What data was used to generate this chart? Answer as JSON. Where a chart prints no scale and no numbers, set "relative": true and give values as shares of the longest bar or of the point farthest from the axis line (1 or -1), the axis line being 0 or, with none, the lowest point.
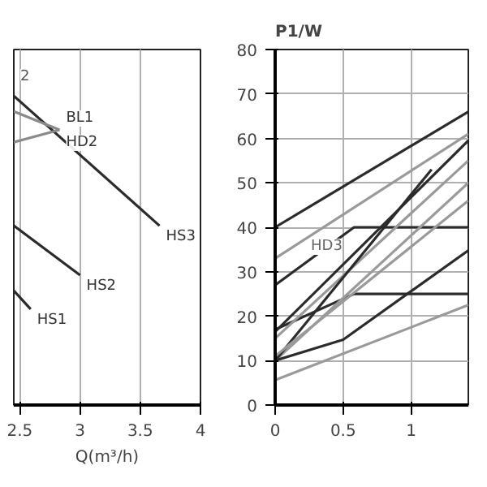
{
  "chart_data": [
    {
      "type": "line",
      "xlabel": "Q(m³/h)",
      "relative": true,
      "xlim": [
        2.45,
        4
      ],
      "xticks": [
        2.5,
        3,
        3.5,
        4
      ],
      "grid": "x",
      "tick_labels": "x",
      "annotations": [
        "2"
      ],
      "series": [
        {
          "name": "HS3",
          "color": "#2b2b2b",
          "x": [
            2.45,
            3.66
          ],
          "values": [
            1,
            0.58
          ]
        },
        {
          "name": "HS2",
          "color": "#2b2b2b",
          "x": [
            2.45,
            3.0
          ],
          "values": [
            0.58,
            0.42
          ]
        },
        {
          "name": "HS1",
          "color": "#2b2b2b",
          "x": [
            2.45,
            2.59
          ],
          "values": [
            0.37,
            0.31
          ]
        },
        {
          "name": "BL1",
          "color": "#8a8a8a",
          "x": [
            2.45,
            2.83
          ],
          "values": [
            0.95,
            0.89
          ]
        },
        {
          "name": "HD2",
          "color": "#8a8a8a",
          "x": [
            2.45,
            2.83
          ],
          "values": [
            0.85,
            0.89
          ]
        }
      ]
    },
    {
      "type": "line",
      "title": "P1/W",
      "xlim": [
        0,
        1.42
      ],
      "xticks": [
        0,
        0.5,
        1
      ],
      "ylim": [
        0,
        80
      ],
      "yticks": [
        0,
        10,
        20,
        30,
        40,
        50,
        60,
        70,
        80
      ],
      "grid": true,
      "series": [
        {
          "name": "HD3",
          "color": "#2b2b2b",
          "x": [
            0,
            1.42
          ],
          "values": [
            40,
            66
          ]
        },
        {
          "color": "#9a9a9a",
          "x": [
            0,
            1.42
          ],
          "values": [
            33,
            61
          ]
        },
        {
          "color": "#2b2b2b",
          "x": [
            0,
            0.58,
            1.42
          ],
          "values": [
            27,
            40,
            40
          ]
        },
        {
          "color": "#2b2b2b",
          "x": [
            0,
            0.58,
            1.42
          ],
          "values": [
            17,
            25,
            25
          ]
        },
        {
          "color": "#2b2b2b",
          "x": [
            0,
            1.42
          ],
          "values": [
            16.5,
            59.5
          ]
        },
        {
          "color": "#9a9a9a",
          "x": [
            0,
            1.42
          ],
          "values": [
            15,
            55
          ]
        },
        {
          "color": "#9a9a9a",
          "x": [
            0,
            1.42
          ],
          "values": [
            10,
            50
          ]
        },
        {
          "color": "#2b2b2b",
          "x": [
            0,
            1.15
          ],
          "values": [
            10,
            53
          ]
        },
        {
          "color": "#2b2b2b",
          "x": [
            0,
            0.5,
            1.42
          ],
          "values": [
            10,
            14.7,
            34.8
          ]
        },
        {
          "color": "#9a9a9a",
          "x": [
            0,
            1.42
          ],
          "values": [
            11,
            46
          ]
        },
        {
          "color": "#9a9a9a",
          "x": [
            0,
            1.42
          ],
          "values": [
            5.6,
            22.5
          ]
        }
      ]
    }
  ]
}
